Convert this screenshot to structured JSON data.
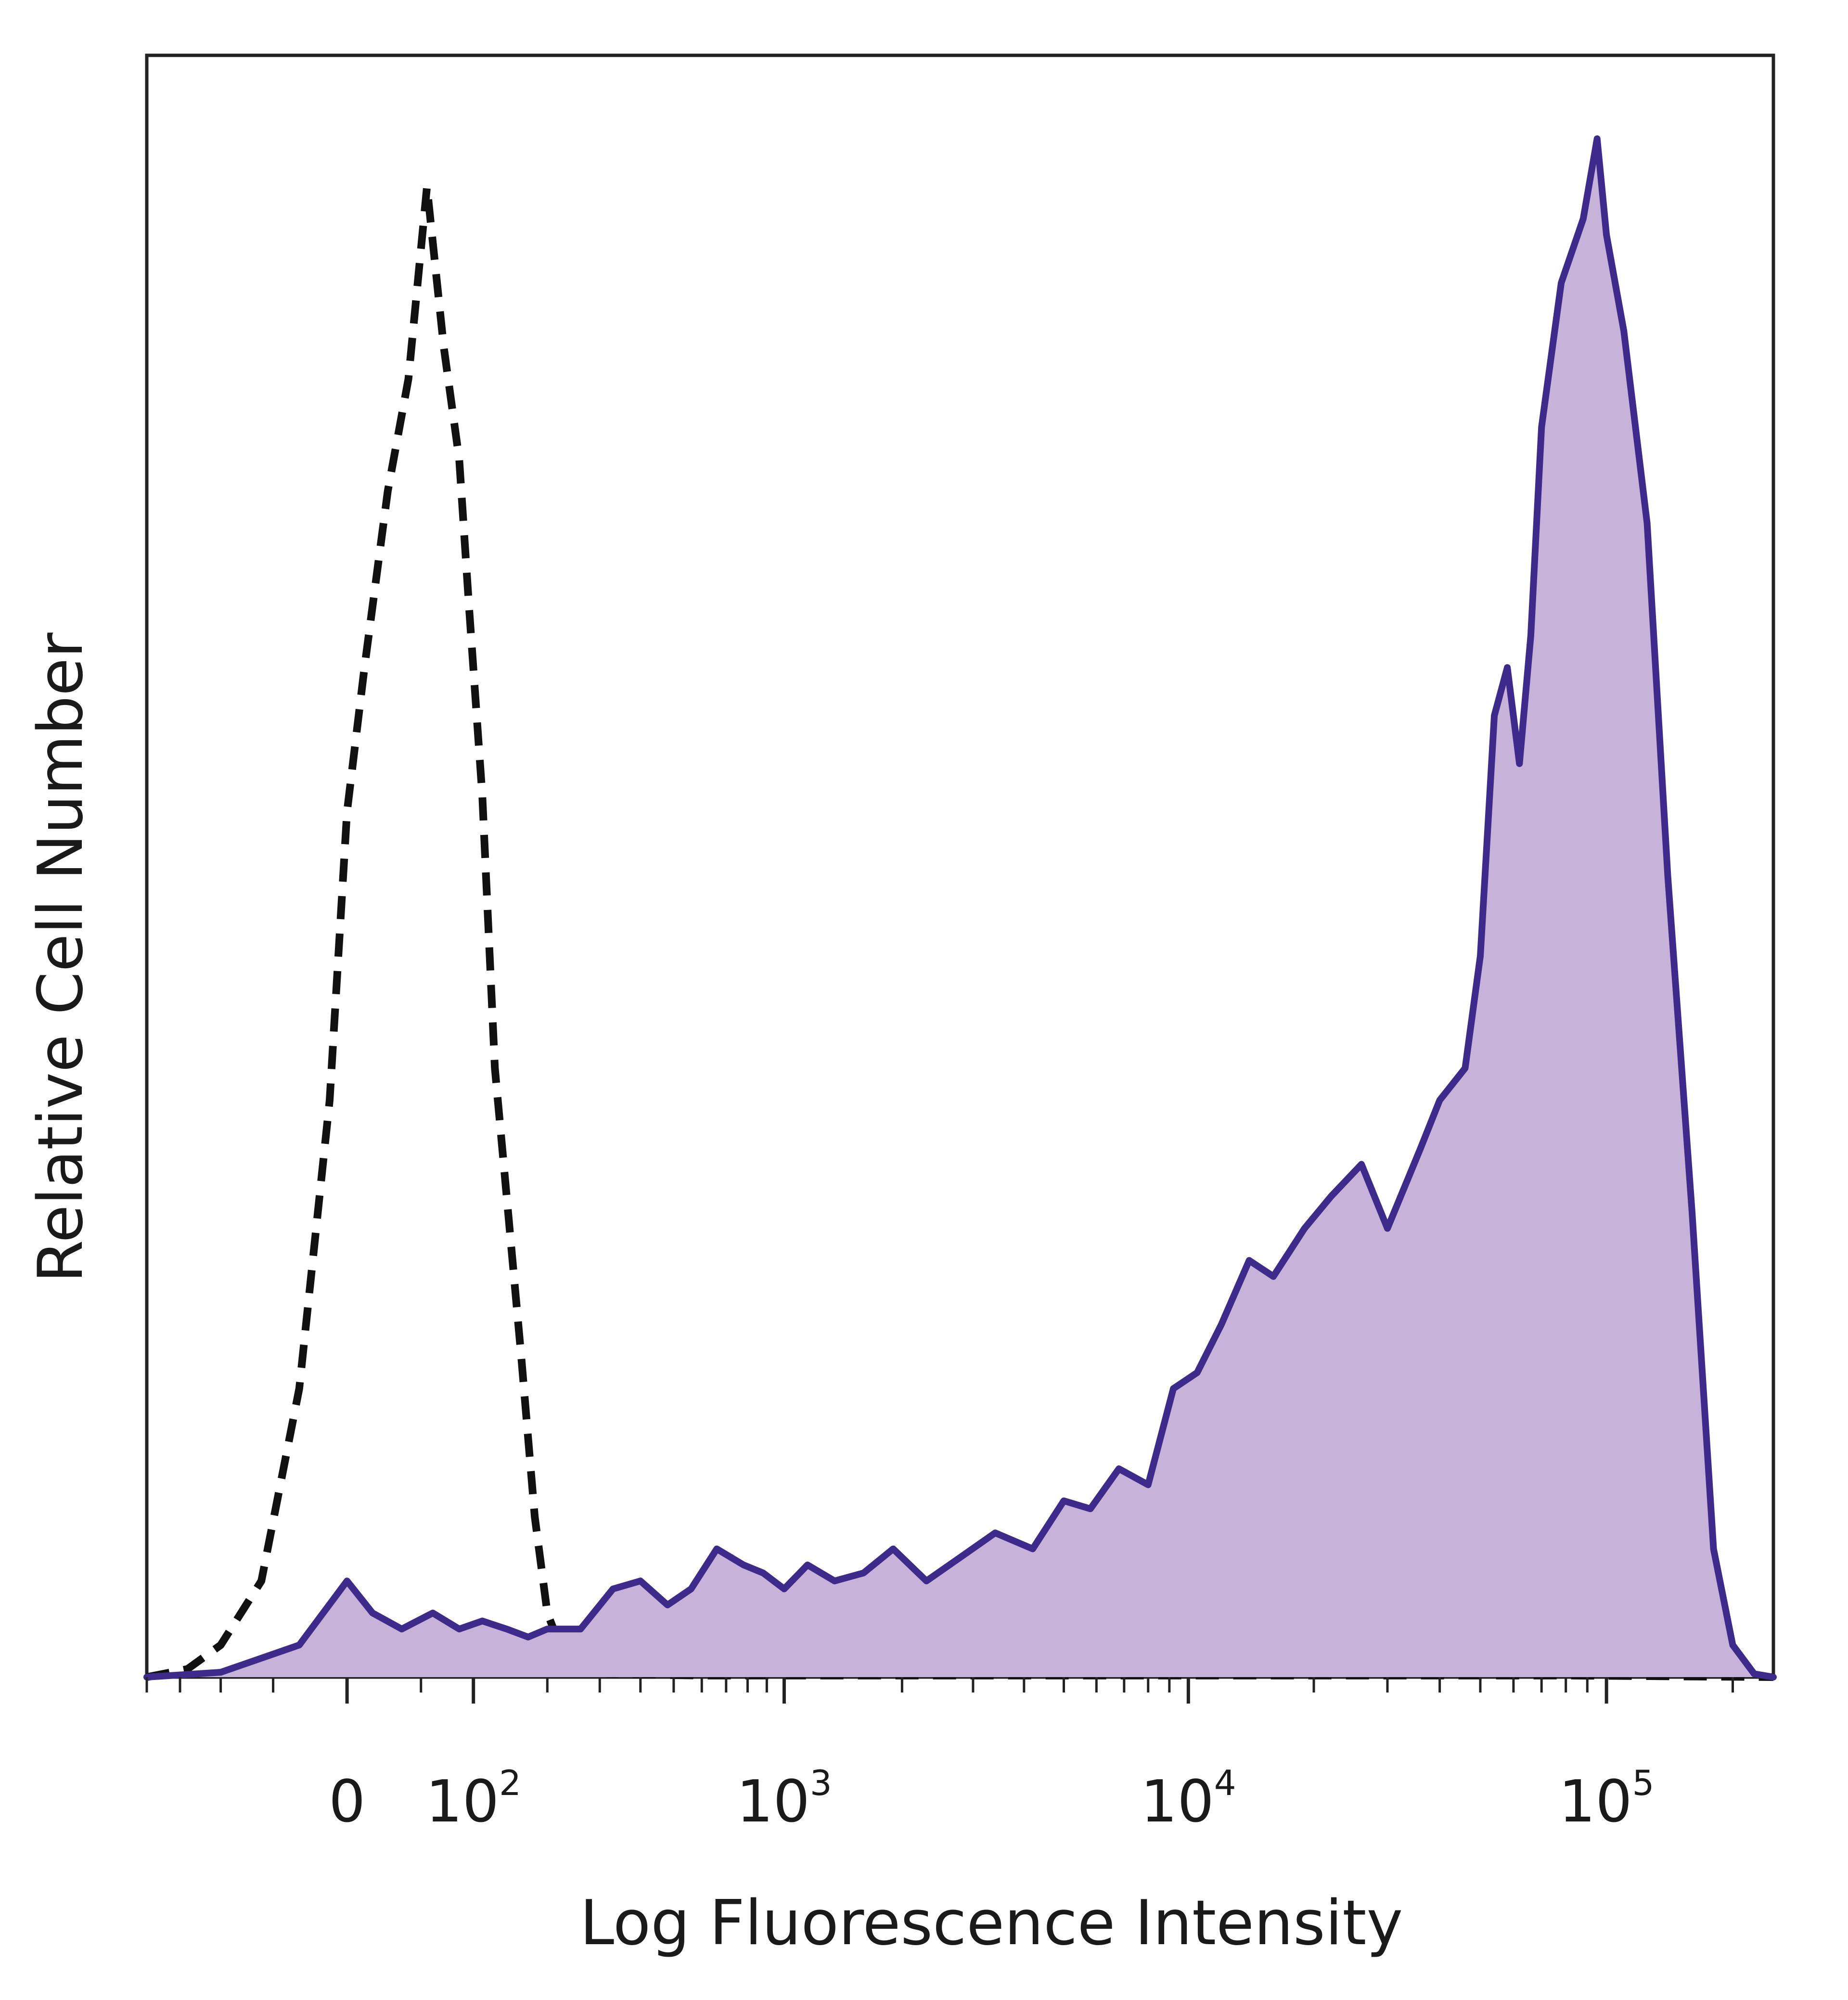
{
  "chart_data": {
    "type": "area",
    "title": "",
    "xlabel": "Log Fluorescence Intensity",
    "ylabel": "Relative Cell Number",
    "x_scale": "biexponential",
    "xlim": [
      -200,
      250000
    ],
    "ylim": [
      0,
      1.0
    ],
    "x_ticks": [
      {
        "value": 0,
        "label": "0",
        "exp": ""
      },
      {
        "value": 100,
        "label": "10",
        "exp": "2"
      },
      {
        "value": 1000,
        "label": "10",
        "exp": "3"
      },
      {
        "value": 10000,
        "label": "10",
        "exp": "4"
      },
      {
        "value": 100000,
        "label": "10",
        "exp": "5"
      }
    ],
    "grid": false,
    "legend": "none",
    "colors": {
      "stained_line": "#3d2a8a",
      "stained_fill": "#c7b2d9",
      "control_line": "#111111",
      "frame": "#222222"
    },
    "series": [
      {
        "style": "dashed-unfilled",
        "x": [
          -200,
          -140,
          -100,
          -60,
          -30,
          -10,
          0,
          10,
          25,
          40,
          55,
          70,
          85,
          95,
          110,
          125,
          140,
          160,
          180,
          200,
          230,
          270,
          320,
          400,
          600,
          1000,
          5000,
          20000,
          80000,
          250000
        ],
        "y": [
          0.0,
          0.005,
          0.02,
          0.06,
          0.18,
          0.36,
          0.54,
          0.63,
          0.74,
          0.81,
          0.93,
          0.83,
          0.76,
          0.67,
          0.55,
          0.38,
          0.3,
          0.2,
          0.1,
          0.04,
          0.012,
          0.004,
          0.002,
          0.0015,
          0.001,
          0.001,
          0.001,
          0.001,
          0.001,
          0.0
        ]
      },
      {
        "style": "solid-filled",
        "x": [
          -200,
          -100,
          -30,
          0,
          15,
          35,
          60,
          85,
          110,
          140,
          170,
          200,
          260,
          330,
          400,
          480,
          560,
          660,
          780,
          880,
          1000,
          1150,
          1350,
          1600,
          1900,
          2300,
          2800,
          3400,
          4200,
          5000,
          5800,
          6800,
          8000,
          9200,
          10500,
          12000,
          14000,
          16000,
          19000,
          22000,
          26000,
          30000,
          36000,
          40000,
          46000,
          50000,
          54000,
          58000,
          62000,
          66000,
          70000,
          78000,
          88000,
          95000,
          100000,
          110000,
          125000,
          140000,
          160000,
          180000,
          200000,
          225000,
          250000
        ],
        "y": [
          0.0,
          0.003,
          0.02,
          0.06,
          0.04,
          0.03,
          0.04,
          0.03,
          0.035,
          0.03,
          0.025,
          0.03,
          0.03,
          0.055,
          0.06,
          0.045,
          0.055,
          0.08,
          0.07,
          0.065,
          0.055,
          0.07,
          0.06,
          0.065,
          0.08,
          0.06,
          0.075,
          0.09,
          0.08,
          0.11,
          0.105,
          0.13,
          0.12,
          0.18,
          0.19,
          0.22,
          0.26,
          0.25,
          0.28,
          0.3,
          0.32,
          0.28,
          0.33,
          0.36,
          0.38,
          0.45,
          0.6,
          0.63,
          0.57,
          0.65,
          0.78,
          0.87,
          0.91,
          0.96,
          0.9,
          0.84,
          0.72,
          0.5,
          0.29,
          0.08,
          0.02,
          0.002,
          0.0
        ]
      }
    ]
  }
}
